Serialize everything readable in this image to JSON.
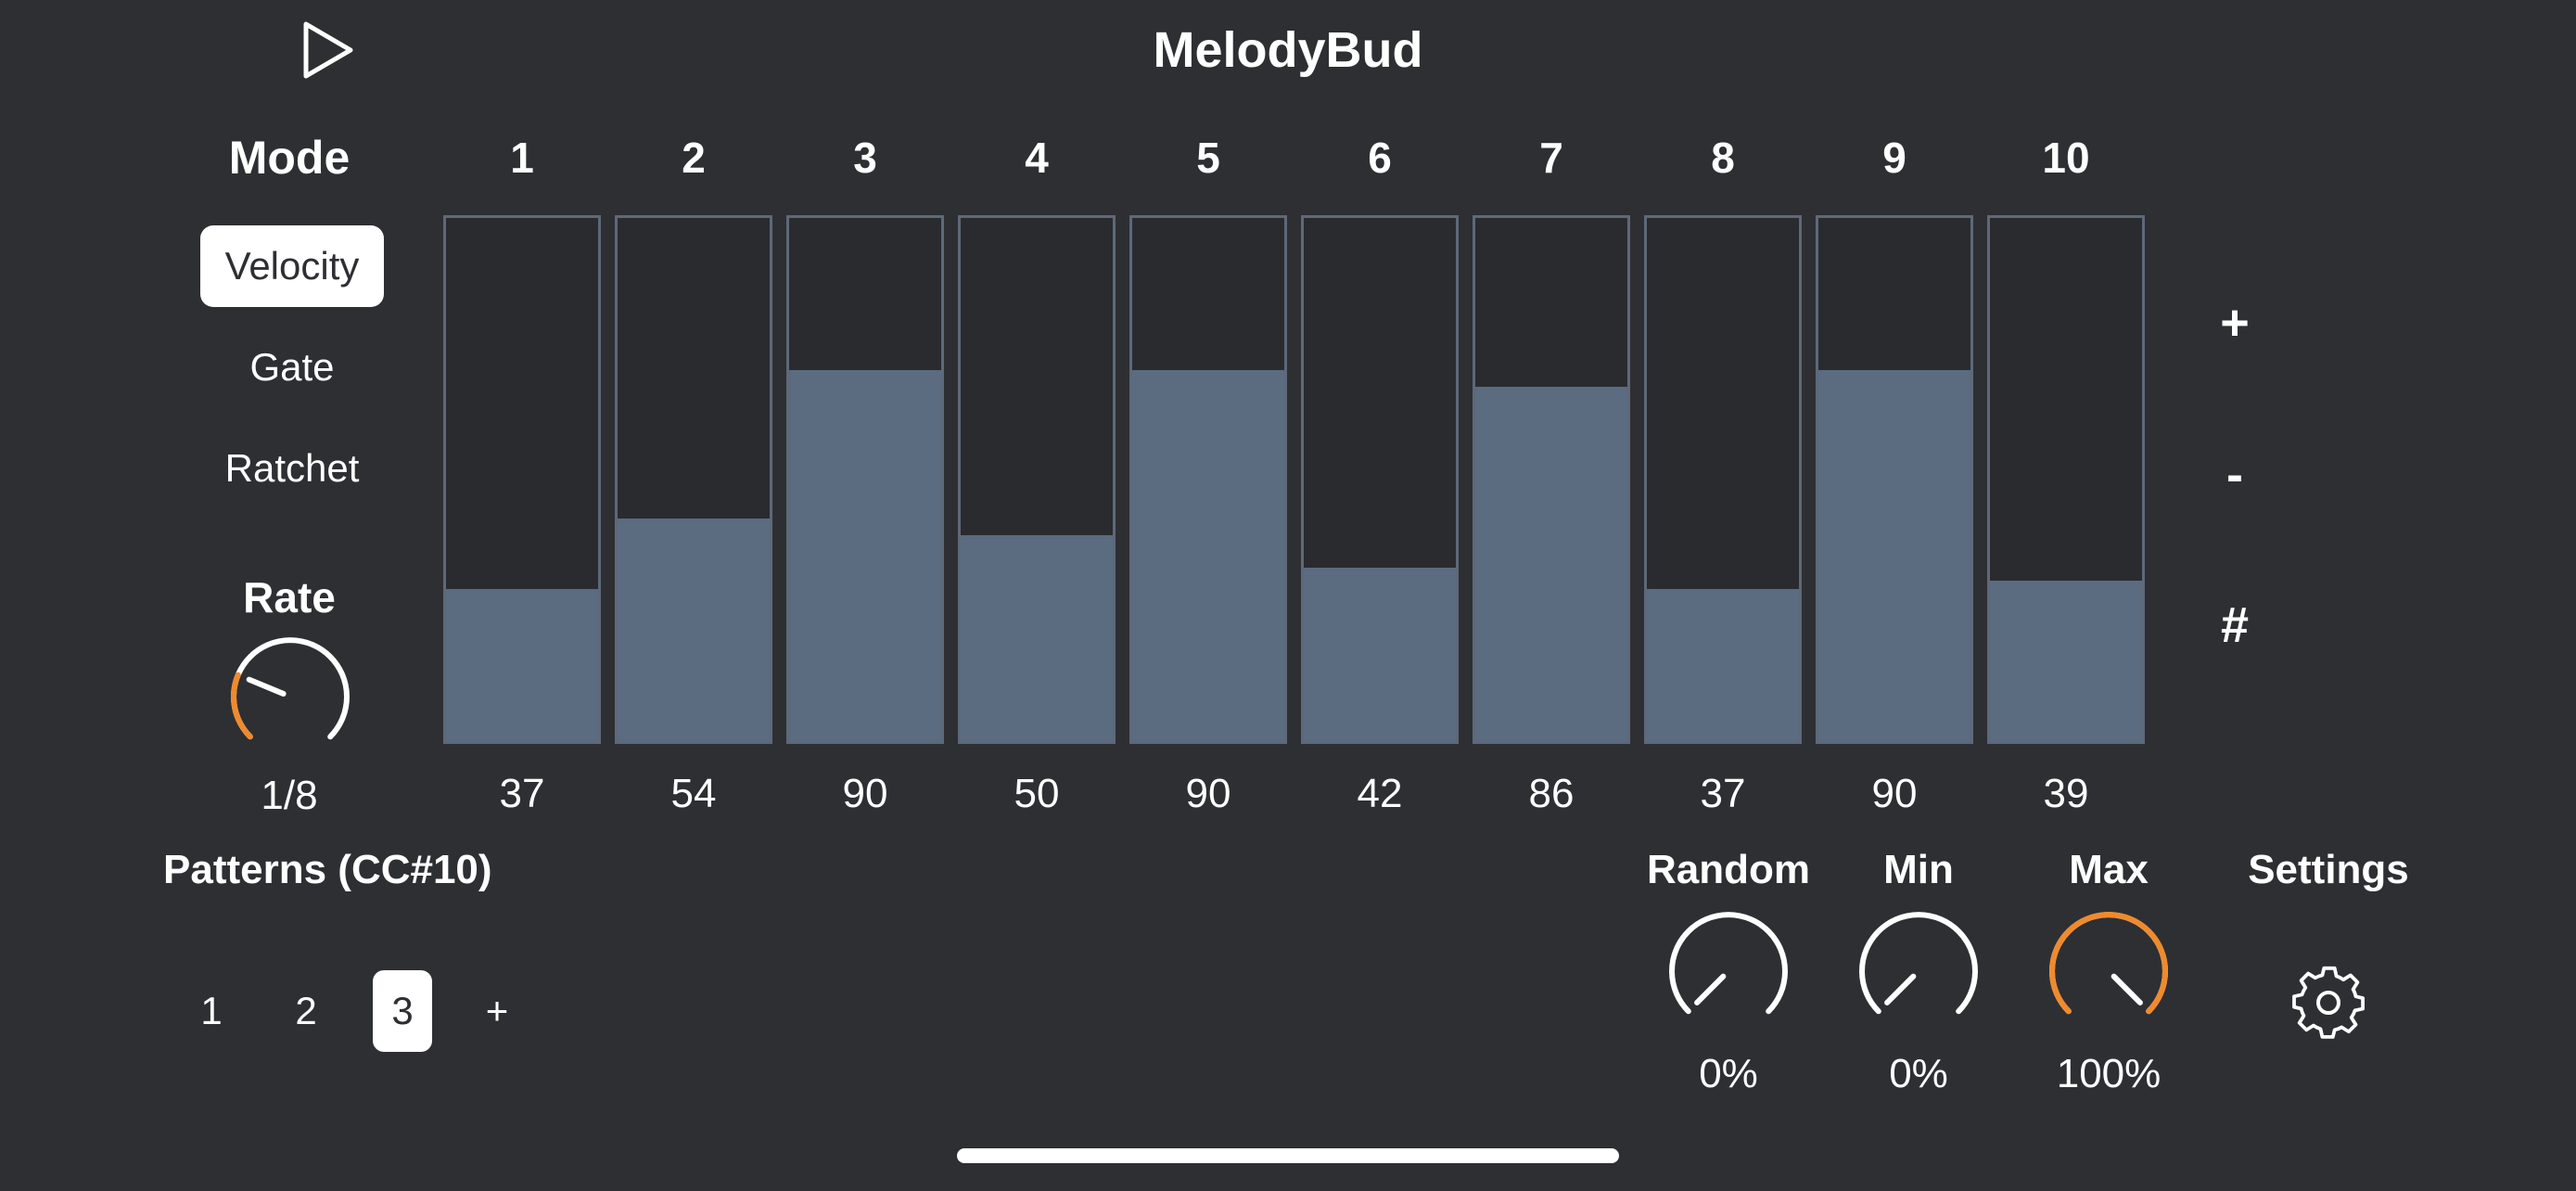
{
  "app": {
    "title": "MelodyBud"
  },
  "icons": {
    "play": "play-icon",
    "settings": "gear-icon"
  },
  "colors": {
    "accent": "#f08a2c",
    "bar_fill": "#5b6b80",
    "bar_border": "#5d6979",
    "background": "#2e2f33"
  },
  "mode": {
    "heading": "Mode",
    "items": [
      {
        "label": "Velocity",
        "selected": true
      },
      {
        "label": "Gate",
        "selected": false
      },
      {
        "label": "Ratchet",
        "selected": false
      }
    ]
  },
  "rate": {
    "heading": "Rate",
    "value": "1/8",
    "level": 0.25
  },
  "steps": {
    "numbers": [
      "1",
      "2",
      "3",
      "4",
      "5",
      "6",
      "7",
      "8",
      "9",
      "10"
    ],
    "values": [
      37,
      54,
      90,
      50,
      90,
      42,
      86,
      37,
      90,
      39
    ],
    "max": 127
  },
  "side_controls": {
    "plus": "+",
    "minus": "-",
    "sharp": "#"
  },
  "patterns": {
    "heading": "Patterns (CC#10)",
    "items": [
      "1",
      "2",
      "3"
    ],
    "selected_index": 2,
    "add_label": "+"
  },
  "knobs": {
    "random": {
      "label": "Random",
      "value": "0%",
      "level": 0
    },
    "min": {
      "label": "Min",
      "value": "0%",
      "level": 0
    },
    "max": {
      "label": "Max",
      "value": "100%",
      "level": 1
    }
  },
  "settings": {
    "label": "Settings"
  }
}
